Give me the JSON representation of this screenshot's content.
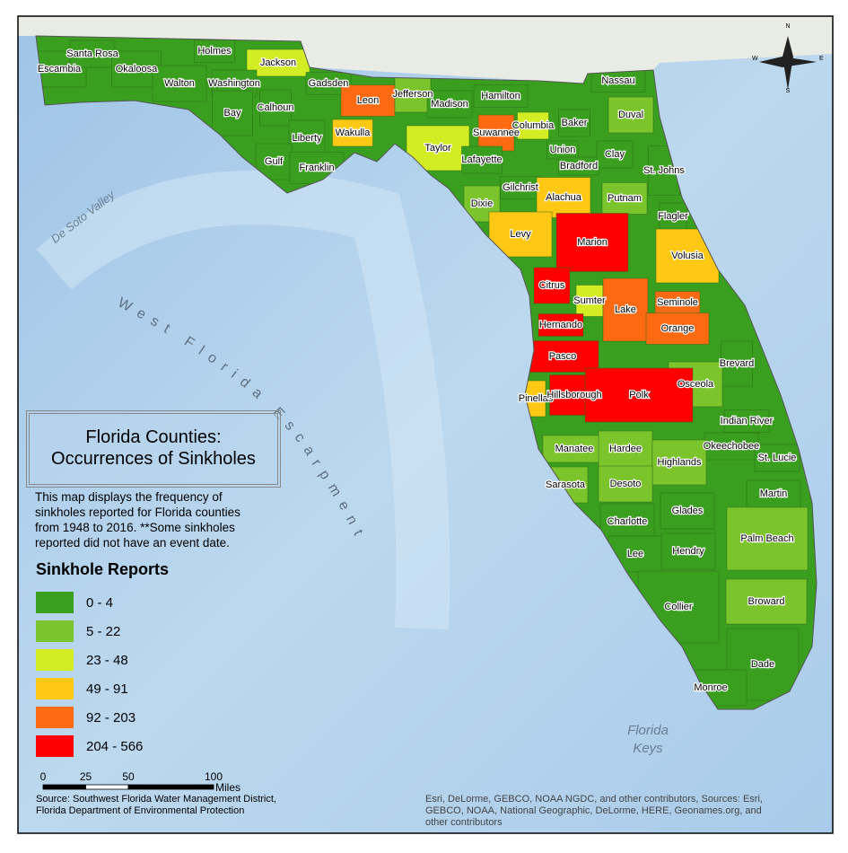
{
  "map": {
    "title_lines": [
      "Florida Counties:",
      "Occurrences of Sinkholes"
    ],
    "description_lines": [
      "This map displays the frequency of",
      "sinkholes reported for Florida counties",
      "from 1948 to 2016. **Some sinkholes",
      "reported did not have an event date."
    ],
    "legend": {
      "title": "Sinkhole Reports",
      "classes": [
        {
          "label": "0 - 4",
          "color": "#3a9f1f"
        },
        {
          "label": "5 - 22",
          "color": "#7cc42b"
        },
        {
          "label": "23 - 48",
          "color": "#d3ec24"
        },
        {
          "label": "49 - 91",
          "color": "#fec814"
        },
        {
          "label": "92 - 203",
          "color": "#fd6a12"
        },
        {
          "label": "204 - 566",
          "color": "#fe0000"
        }
      ]
    },
    "scale_bar": {
      "ticks": [
        0,
        25,
        50,
        100
      ],
      "unit": "Miles"
    },
    "compass": [
      "N",
      "E",
      "S",
      "W"
    ],
    "water_labels": [
      "De Soto Valley",
      "West Florida Escarpment"
    ],
    "keys_label": [
      "Florida",
      "Keys"
    ],
    "source_lines": [
      "Source: Southwest Florida Water Management District,",
      "Florida Department of Environmental Protection"
    ],
    "attribution_lines": [
      "Esri, DeLorme, GEBCO, NOAA NGDC, and other contributors, Sources: Esri,",
      "GEBCO, NOAA, National Geographic, DeLorme, HERE, Geonames.org, and",
      "other contributors"
    ],
    "counties": [
      {
        "name": "Escambia",
        "color": "#3a9f1f"
      },
      {
        "name": "Santa Rosa",
        "color": "#3a9f1f"
      },
      {
        "name": "Okaloosa",
        "color": "#3a9f1f"
      },
      {
        "name": "Holmes",
        "color": "#3a9f1f"
      },
      {
        "name": "Jackson",
        "color": "#d3ec24"
      },
      {
        "name": "Walton",
        "color": "#3a9f1f"
      },
      {
        "name": "Washington",
        "color": "#3a9f1f"
      },
      {
        "name": "Gadsden",
        "color": "#3a9f1f"
      },
      {
        "name": "Bay",
        "color": "#3a9f1f"
      },
      {
        "name": "Calhoun",
        "color": "#3a9f1f"
      },
      {
        "name": "Liberty",
        "color": "#3a9f1f"
      },
      {
        "name": "Gulf",
        "color": "#3a9f1f"
      },
      {
        "name": "Franklin",
        "color": "#3a9f1f"
      },
      {
        "name": "Leon",
        "color": "#fd6a12"
      },
      {
        "name": "Wakulla",
        "color": "#fec814"
      },
      {
        "name": "Jefferson",
        "color": "#7cc42b"
      },
      {
        "name": "Madison",
        "color": "#3a9f1f"
      },
      {
        "name": "Hamilton",
        "color": "#3a9f1f"
      },
      {
        "name": "Suwannee",
        "color": "#fd6a12"
      },
      {
        "name": "Columbia",
        "color": "#d3ec24"
      },
      {
        "name": "Taylor",
        "color": "#d3ec24"
      },
      {
        "name": "Lafayette",
        "color": "#3a9f1f"
      },
      {
        "name": "Nassau",
        "color": "#3a9f1f"
      },
      {
        "name": "Duval",
        "color": "#7cc42b"
      },
      {
        "name": "Baker",
        "color": "#3a9f1f"
      },
      {
        "name": "Union",
        "color": "#3a9f1f"
      },
      {
        "name": "Bradford",
        "color": "#3a9f1f"
      },
      {
        "name": "Clay",
        "color": "#3a9f1f"
      },
      {
        "name": "St. Johns",
        "color": "#3a9f1f"
      },
      {
        "name": "Gilchrist",
        "color": "#3a9f1f"
      },
      {
        "name": "Dixie",
        "color": "#7cc42b"
      },
      {
        "name": "Alachua",
        "color": "#fec814"
      },
      {
        "name": "Putnam",
        "color": "#7cc42b"
      },
      {
        "name": "Flagler",
        "color": "#3a9f1f"
      },
      {
        "name": "Levy",
        "color": "#fec814"
      },
      {
        "name": "Marion",
        "color": "#fe0000"
      },
      {
        "name": "Volusia",
        "color": "#fec814"
      },
      {
        "name": "Citrus",
        "color": "#fe0000"
      },
      {
        "name": "Sumter",
        "color": "#d3ec24"
      },
      {
        "name": "Lake",
        "color": "#fd6a12"
      },
      {
        "name": "Seminole",
        "color": "#fd6a12"
      },
      {
        "name": "Hernando",
        "color": "#fe0000"
      },
      {
        "name": "Orange",
        "color": "#fd6a12"
      },
      {
        "name": "Pasco",
        "color": "#fe0000"
      },
      {
        "name": "Brevard",
        "color": "#3a9f1f"
      },
      {
        "name": "Osceola",
        "color": "#7cc42b"
      },
      {
        "name": "Pinellas",
        "color": "#fec814"
      },
      {
        "name": "Hillsborough",
        "color": "#fe0000"
      },
      {
        "name": "Polk",
        "color": "#fe0000"
      },
      {
        "name": "Indian River",
        "color": "#3a9f1f"
      },
      {
        "name": "Okeechobee",
        "color": "#3a9f1f"
      },
      {
        "name": "St. Lucie",
        "color": "#3a9f1f"
      },
      {
        "name": "Manatee",
        "color": "#7cc42b"
      },
      {
        "name": "Hardee",
        "color": "#7cc42b"
      },
      {
        "name": "Highlands",
        "color": "#7cc42b"
      },
      {
        "name": "Sarasota",
        "color": "#7cc42b"
      },
      {
        "name": "Desoto",
        "color": "#7cc42b"
      },
      {
        "name": "Martin",
        "color": "#3a9f1f"
      },
      {
        "name": "Charlotte",
        "color": "#3a9f1f"
      },
      {
        "name": "Glades",
        "color": "#3a9f1f"
      },
      {
        "name": "Palm Beach",
        "color": "#7cc42b"
      },
      {
        "name": "Lee",
        "color": "#3a9f1f"
      },
      {
        "name": "Hendry",
        "color": "#3a9f1f"
      },
      {
        "name": "Broward",
        "color": "#7cc42b"
      },
      {
        "name": "Collier",
        "color": "#3a9f1f"
      },
      {
        "name": "Dade",
        "color": "#3a9f1f"
      },
      {
        "name": "Monroe",
        "color": "#3a9f1f"
      }
    ]
  }
}
